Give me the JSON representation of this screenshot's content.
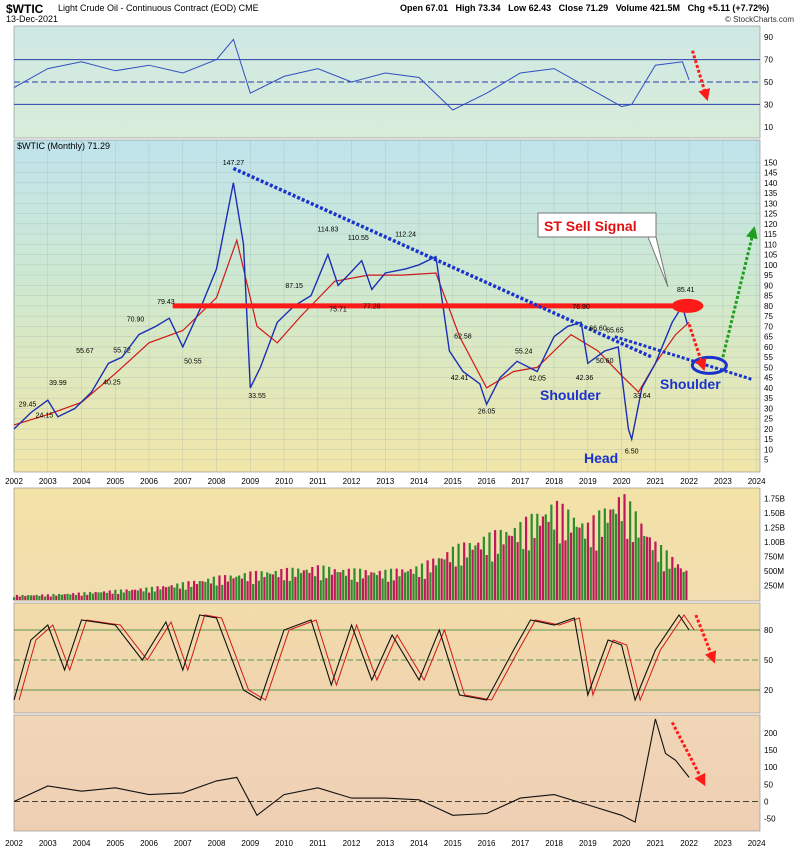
{
  "header": {
    "symbol": "$WTIC",
    "description": "Light Crude Oil - Continuous Contract (EOD)",
    "exchange": "CME",
    "date": "13-Dec-2021",
    "open": "Open 67.01",
    "high": "High 73.34",
    "low": "Low 62.43",
    "close": "Close 71.29",
    "volume": "Volume 421.5M",
    "change": "Chg +5.11 (+7.72%)",
    "brand": "© StockCharts.com"
  },
  "colors": {
    "price_line": "#1c2fb5",
    "ma_line": "#d01818",
    "up_volume": "#2e8b2e",
    "down_volume": "#c0185a",
    "trendline": "#1a33cc",
    "support_line": "#ff1a1a",
    "target_arrow": "#1f9e1f"
  },
  "chart_data": [
    {
      "type": "line",
      "panel": "rsi",
      "y_ticks": [
        90,
        70,
        50,
        30,
        10
      ],
      "ylim": [
        0,
        100
      ],
      "reference_lines": [
        70,
        50,
        30
      ],
      "x": [
        2002,
        2003,
        2004,
        2005,
        2006,
        2007,
        2008,
        2008.5,
        2009,
        2010,
        2011,
        2012,
        2013,
        2014,
        2015,
        2016,
        2017,
        2018,
        2019,
        2020,
        2020.3,
        2021,
        2021.8,
        2022
      ],
      "values": [
        45,
        62,
        68,
        60,
        65,
        58,
        70,
        88,
        40,
        55,
        62,
        50,
        58,
        54,
        25,
        40,
        58,
        62,
        45,
        28,
        30,
        65,
        68,
        52
      ]
    },
    {
      "type": "line",
      "panel": "price",
      "label": "$WTIC (Monthly) 71.29",
      "xlim": [
        2002,
        2024.1
      ],
      "ylim": [
        0,
        155
      ],
      "x_ticks": [
        "2002",
        "2003",
        "2004",
        "2005",
        "2006",
        "2007",
        "2008",
        "2009",
        "2010",
        "2011",
        "2012",
        "2013",
        "2014",
        "2015",
        "2016",
        "2017",
        "2018",
        "2019",
        "2020",
        "2021",
        "2022",
        "2023",
        "2024"
      ],
      "y_ticks": [
        150,
        145,
        140,
        135,
        130,
        125,
        120,
        115,
        110,
        105,
        100,
        95,
        90,
        85,
        80,
        75,
        70,
        65,
        60,
        55,
        50,
        45,
        40,
        35,
        30,
        25,
        20,
        15,
        10,
        5
      ],
      "series": [
        {
          "name": "",
          "x": [
            2002,
            2002.5,
            2003,
            2003.3,
            2003.8,
            2004.3,
            2004.8,
            2005.2,
            2005.7,
            2006.2,
            2006.6,
            2007,
            2007.5,
            2008,
            2008.5,
            2008.8,
            2009,
            2009.3,
            2009.8,
            2010.3,
            2010.8,
            2011.3,
            2011.6,
            2011.9,
            2012.3,
            2012.6,
            2013,
            2013.6,
            2014,
            2014.5,
            2014.9,
            2015.3,
            2015.8,
            2016,
            2016.4,
            2016.9,
            2017.5,
            2018,
            2018.4,
            2018.8,
            2019,
            2019.5,
            2019.9,
            2020.2,
            2020.3,
            2020.6,
            2021,
            2021.5,
            2021.8,
            2021.95
          ],
          "values": [
            20,
            28,
            34,
            26,
            30,
            38,
            52,
            55,
            66,
            70,
            74,
            60,
            78,
            98,
            140,
            110,
            40,
            50,
            72,
            80,
            85,
            105,
            90,
            95,
            102,
            88,
            96,
            98,
            100,
            104,
            58,
            48,
            42,
            32,
            45,
            53,
            48,
            65,
            70,
            72,
            52,
            58,
            60,
            20,
            15,
            40,
            52,
            72,
            80,
            71
          ]
        },
        {
          "name": "",
          "x": [
            2002,
            2003,
            2004,
            2005,
            2006,
            2007,
            2008,
            2008.6,
            2009.2,
            2009.8,
            2010.5,
            2011.5,
            2012.5,
            2013.5,
            2014.5,
            2015.2,
            2016,
            2016.8,
            2017.5,
            2018.5,
            2019.3,
            2020,
            2020.5,
            2021,
            2021.6,
            2022
          ],
          "values": [
            22,
            27,
            33,
            47,
            62,
            68,
            84,
            112,
            70,
            62,
            75,
            92,
            95,
            95,
            96,
            65,
            40,
            48,
            50,
            66,
            58,
            46,
            38,
            52,
            66,
            72
          ]
        }
      ],
      "annotations": [
        {
          "text": "147.27",
          "x": 2008.5,
          "y": 147.27
        },
        {
          "text": "114.83",
          "x": 2011.3,
          "y": 114.83
        },
        {
          "text": "110.55",
          "x": 2012.2,
          "y": 110.55
        },
        {
          "text": "112.24",
          "x": 2013.6,
          "y": 112.24
        },
        {
          "text": "87.15",
          "x": 2010.3,
          "y": 87.15
        },
        {
          "text": "79.43",
          "x": 2006.5,
          "y": 79.43
        },
        {
          "text": "70.90",
          "x": 2005.6,
          "y": 70.9
        },
        {
          "text": "55.67",
          "x": 2004.1,
          "y": 55.67
        },
        {
          "text": "55.72",
          "x": 2005.2,
          "y": 55.72
        },
        {
          "text": "50.55",
          "x": 2007.3,
          "y": 50.55
        },
        {
          "text": "39.99",
          "x": 2003.3,
          "y": 39.99
        },
        {
          "text": "40.25",
          "x": 2004.9,
          "y": 40.25
        },
        {
          "text": "29.45",
          "x": 2002.4,
          "y": 29.45
        },
        {
          "text": "24.15",
          "x": 2002.9,
          "y": 24.15
        },
        {
          "text": "33.55",
          "x": 2009.2,
          "y": 33.55
        },
        {
          "text": "75.71",
          "x": 2011.6,
          "y": 75.71
        },
        {
          "text": "77.28",
          "x": 2012.6,
          "y": 77.28
        },
        {
          "text": "62.58",
          "x": 2015.3,
          "y": 62.58
        },
        {
          "text": "42.41",
          "x": 2015.2,
          "y": 42.41
        },
        {
          "text": "26.05",
          "x": 2016.0,
          "y": 26.05
        },
        {
          "text": "55.24",
          "x": 2017.1,
          "y": 55.24
        },
        {
          "text": "42.05",
          "x": 2017.5,
          "y": 42.05
        },
        {
          "text": "76.90",
          "x": 2018.8,
          "y": 76.9
        },
        {
          "text": "66.60",
          "x": 2019.3,
          "y": 66.6
        },
        {
          "text": "42.36",
          "x": 2018.9,
          "y": 42.36
        },
        {
          "text": "50.60",
          "x": 2019.5,
          "y": 50.6
        },
        {
          "text": "65.65",
          "x": 2019.8,
          "y": 65.65
        },
        {
          "text": "33.64",
          "x": 2020.6,
          "y": 33.64
        },
        {
          "text": "6.50",
          "x": 2020.3,
          "y": 6.5
        },
        {
          "text": "85.41",
          "x": 2021.9,
          "y": 85.41
        }
      ],
      "overlays": {
        "sell_signal": "ST Sell Signal",
        "left_shoulder": "Shoulder",
        "head": "Head",
        "right_shoulder": "Shoulder",
        "support_level": 80
      }
    },
    {
      "type": "bar",
      "panel": "volume",
      "y_ticks": [
        "1.75B",
        "1.50B",
        "1.25B",
        "1.00B",
        "750M",
        "500M",
        "250M"
      ],
      "ylim": [
        0,
        1.9
      ],
      "x": [
        2002,
        2003,
        2004,
        2005,
        2006,
        2007,
        2008,
        2009,
        2010,
        2011,
        2012,
        2013,
        2014,
        2015,
        2016,
        2017,
        2018,
        2019,
        2020,
        2021,
        2022
      ],
      "values": [
        0.08,
        0.09,
        0.12,
        0.16,
        0.2,
        0.28,
        0.38,
        0.45,
        0.5,
        0.55,
        0.5,
        0.48,
        0.55,
        0.85,
        1.05,
        1.25,
        1.6,
        1.25,
        1.75,
        0.95,
        0.45
      ]
    },
    {
      "type": "line",
      "panel": "stochastic",
      "y_ticks": [
        80,
        50,
        20
      ],
      "ylim": [
        0,
        100
      ],
      "reference_lines": [
        80,
        50,
        20
      ],
      "x": [
        2002,
        2002.5,
        2003,
        2003.5,
        2004,
        2005,
        2005.8,
        2006.5,
        2007,
        2007.5,
        2008,
        2008.8,
        2009.3,
        2010,
        2010.8,
        2011.4,
        2012,
        2012.6,
        2013.2,
        2014,
        2014.6,
        2015.2,
        2016,
        2016.8,
        2017.3,
        2018,
        2018.6,
        2019,
        2019.6,
        2020,
        2020.4,
        2021,
        2021.7,
        2022
      ],
      "values": [
        10,
        70,
        85,
        40,
        90,
        85,
        50,
        88,
        40,
        95,
        92,
        20,
        10,
        80,
        90,
        25,
        85,
        30,
        75,
        30,
        80,
        15,
        10,
        60,
        90,
        85,
        92,
        15,
        70,
        65,
        10,
        60,
        95,
        80
      ]
    },
    {
      "type": "line",
      "panel": "roc",
      "y_ticks": [
        200,
        150,
        100,
        50,
        0,
        -50
      ],
      "ylim": [
        -80,
        240
      ],
      "reference_lines": [
        0
      ],
      "x": [
        2002,
        2003,
        2004,
        2005,
        2006,
        2007,
        2008,
        2008.6,
        2009.2,
        2010,
        2011,
        2012,
        2013,
        2014,
        2015,
        2016,
        2017,
        2018,
        2019,
        2020,
        2020.4,
        2021,
        2021.3,
        2021.6,
        2022
      ],
      "values": [
        0,
        45,
        30,
        40,
        20,
        25,
        60,
        70,
        -40,
        20,
        40,
        10,
        10,
        5,
        -40,
        -35,
        10,
        20,
        -10,
        -40,
        -60,
        240,
        140,
        120,
        70
      ]
    }
  ]
}
